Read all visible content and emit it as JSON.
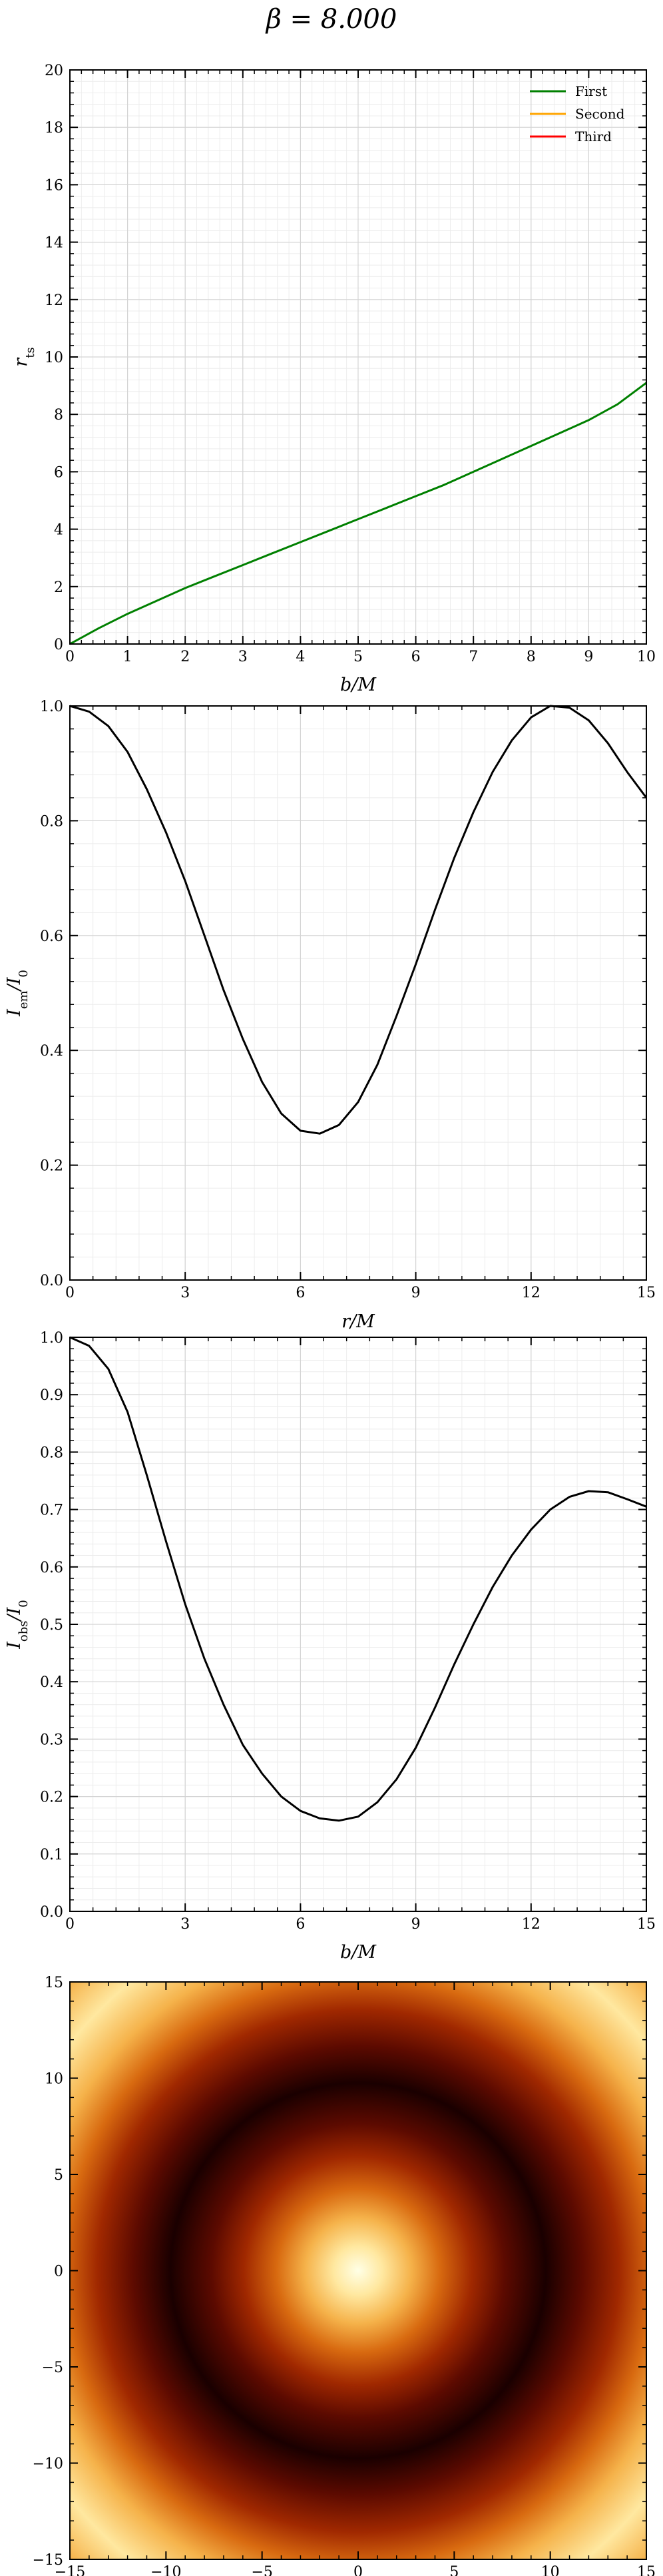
{
  "title": "β = 8.000",
  "chart_data": [
    {
      "type": "line",
      "xlabel": "b/M",
      "ylabel": "r_ts",
      "xlim": [
        0,
        10
      ],
      "ylim": [
        0,
        20
      ],
      "xticks": [
        "0",
        "1",
        "2",
        "3",
        "4",
        "5",
        "6",
        "7",
        "8",
        "9",
        "10"
      ],
      "yticks": [
        "0",
        "2",
        "4",
        "6",
        "8",
        "10",
        "12",
        "14",
        "16",
        "18",
        "20"
      ],
      "grid": true,
      "legend": "top-right",
      "series": [
        {
          "name": "First",
          "color": "#008000",
          "x": [
            0,
            0.5,
            1,
            1.5,
            2,
            2.5,
            3,
            3.5,
            4,
            4.5,
            5,
            5.5,
            6,
            6.5,
            7,
            7.5,
            8,
            8.5,
            9,
            9.5,
            10
          ],
          "y": [
            0,
            0.55,
            1.05,
            1.5,
            1.95,
            2.35,
            2.75,
            3.15,
            3.55,
            3.95,
            4.35,
            4.75,
            5.15,
            5.55,
            6.0,
            6.45,
            6.9,
            7.35,
            7.8,
            8.35,
            9.1
          ]
        },
        {
          "name": "Second",
          "color": "#ffa500",
          "x": [],
          "y": []
        },
        {
          "name": "Third",
          "color": "#ff0000",
          "x": [],
          "y": []
        }
      ]
    },
    {
      "type": "line",
      "xlabel": "r/M",
      "ylabel": "I_em/I_0",
      "xlim": [
        0,
        15
      ],
      "ylim": [
        0,
        1.0
      ],
      "xticks": [
        "0",
        "3",
        "6",
        "9",
        "12",
        "15"
      ],
      "yticks": [
        "0.0",
        "0.2",
        "0.4",
        "0.6",
        "0.8",
        "1.0"
      ],
      "grid": true,
      "series": [
        {
          "name": "",
          "color": "#000000",
          "x": [
            0,
            0.5,
            1,
            1.5,
            2,
            2.5,
            3,
            3.5,
            4,
            4.5,
            5,
            5.5,
            6,
            6.5,
            7,
            7.5,
            8,
            8.5,
            9,
            9.5,
            10,
            10.5,
            11,
            11.5,
            12,
            12.5,
            13,
            13.5,
            14,
            14.5,
            15
          ],
          "y": [
            1.0,
            0.99,
            0.965,
            0.92,
            0.855,
            0.78,
            0.695,
            0.6,
            0.505,
            0.42,
            0.345,
            0.29,
            0.26,
            0.255,
            0.27,
            0.31,
            0.375,
            0.46,
            0.55,
            0.645,
            0.735,
            0.815,
            0.885,
            0.94,
            0.98,
            1.0,
            0.997,
            0.975,
            0.935,
            0.885,
            0.84
          ]
        }
      ]
    },
    {
      "type": "line",
      "xlabel": "b/M",
      "ylabel": "I_obs/I_0",
      "xlim": [
        0,
        15
      ],
      "ylim": [
        0,
        1.0
      ],
      "xticks": [
        "0",
        "3",
        "6",
        "9",
        "12",
        "15"
      ],
      "yticks": [
        "0.0",
        "0.1",
        "0.2",
        "0.3",
        "0.4",
        "0.5",
        "0.6",
        "0.7",
        "0.8",
        "0.9",
        "1.0"
      ],
      "grid": true,
      "series": [
        {
          "name": "",
          "color": "#000000",
          "x": [
            0,
            0.5,
            1,
            1.5,
            2,
            2.5,
            3,
            3.5,
            4,
            4.5,
            5,
            5.5,
            6,
            6.5,
            7,
            7.5,
            8,
            8.5,
            9,
            9.5,
            10,
            10.5,
            11,
            11.5,
            12,
            12.5,
            13,
            13.5,
            14,
            14.5,
            15
          ],
          "y": [
            1.0,
            0.985,
            0.945,
            0.87,
            0.76,
            0.645,
            0.535,
            0.44,
            0.36,
            0.29,
            0.24,
            0.2,
            0.175,
            0.162,
            0.158,
            0.165,
            0.19,
            0.23,
            0.285,
            0.355,
            0.43,
            0.5,
            0.565,
            0.62,
            0.665,
            0.7,
            0.722,
            0.732,
            0.73,
            0.718,
            0.705
          ]
        }
      ]
    },
    {
      "type": "heatmap",
      "xlim": [
        -15,
        15
      ],
      "ylim": [
        -15,
        15
      ],
      "xticks": [
        "−15",
        "−10",
        "−5",
        "0",
        "5",
        "10",
        "15"
      ],
      "yticks": [
        "−15",
        "−10",
        "−5",
        "0",
        "5",
        "10",
        "15"
      ],
      "colormap": [
        "#1a0000",
        "#5c0a00",
        "#a02800",
        "#d86a10",
        "#f5b24a",
        "#ffe8a0",
        "#ffffe6"
      ]
    }
  ]
}
